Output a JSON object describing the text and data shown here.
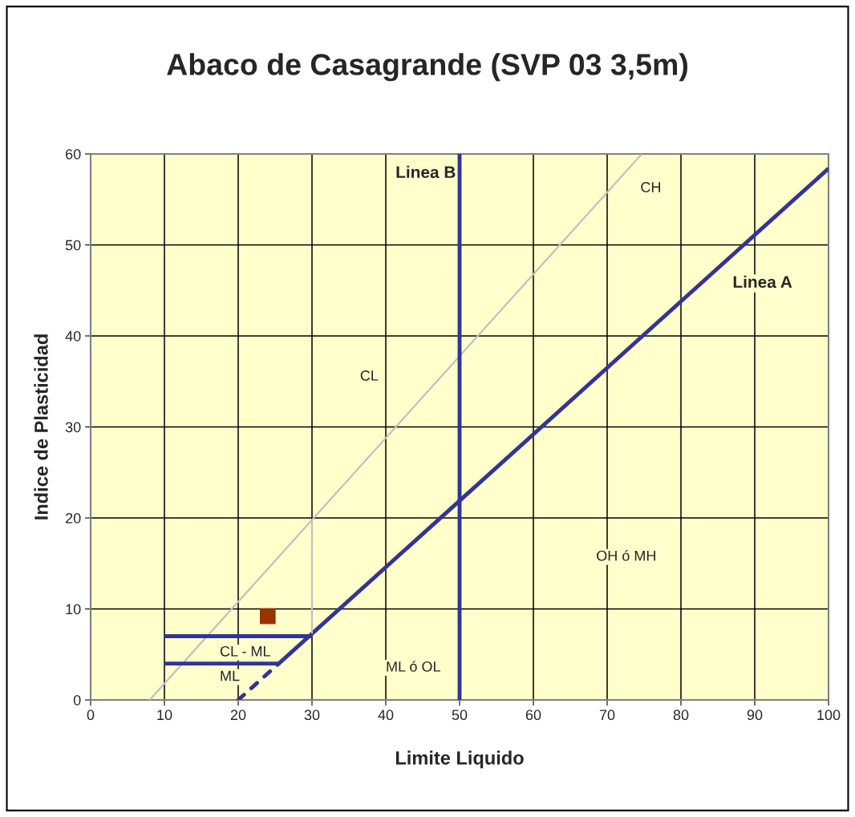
{
  "chart_data": {
    "type": "line",
    "title": "Abaco de Casagrande (SVP 03 3,5m)",
    "xlabel": "Limite Liquido",
    "ylabel": "Indice de Plasticidad",
    "xlim": [
      0,
      100
    ],
    "ylim": [
      0,
      60
    ],
    "xticks": [
      0,
      10,
      20,
      30,
      40,
      50,
      60,
      70,
      80,
      90,
      100
    ],
    "yticks": [
      0,
      10,
      20,
      30,
      40,
      50,
      60
    ],
    "grid": true,
    "legend": false,
    "series": [
      {
        "name": "Linea A",
        "color": "#333399",
        "x": [
          25.5,
          100
        ],
        "values": [
          4,
          58.4
        ],
        "line_style": "solid"
      },
      {
        "color": "#333399",
        "x": [
          20,
          25.5
        ],
        "values": [
          0,
          4
        ],
        "line_style": "dashed"
      },
      {
        "color": "#c0c0c0",
        "x": [
          8,
          74.7
        ],
        "values": [
          0,
          60
        ],
        "line_style": "solid"
      },
      {
        "color": "#c0c0c0",
        "x": [
          30,
          30
        ],
        "values": [
          7.3,
          19.8
        ],
        "line_style": "solid"
      },
      {
        "color": "#333399",
        "x": [
          10,
          30
        ],
        "values": [
          7,
          7
        ],
        "line_style": "solid"
      },
      {
        "color": "#333399",
        "x": [
          10,
          25.5
        ],
        "values": [
          4,
          4
        ],
        "line_style": "solid"
      },
      {
        "type": "scatter",
        "color": "#993300",
        "x": [
          24
        ],
        "values": [
          9.2
        ],
        "marker": "square"
      }
    ],
    "ref_lines": [
      {
        "axis": "x",
        "value": 50,
        "label": "Linea B",
        "color": "#333399"
      }
    ],
    "annotations": [
      "CH",
      "CL",
      "OH ó MH",
      "CL - ML",
      "ML",
      "ML ó OL"
    ]
  }
}
